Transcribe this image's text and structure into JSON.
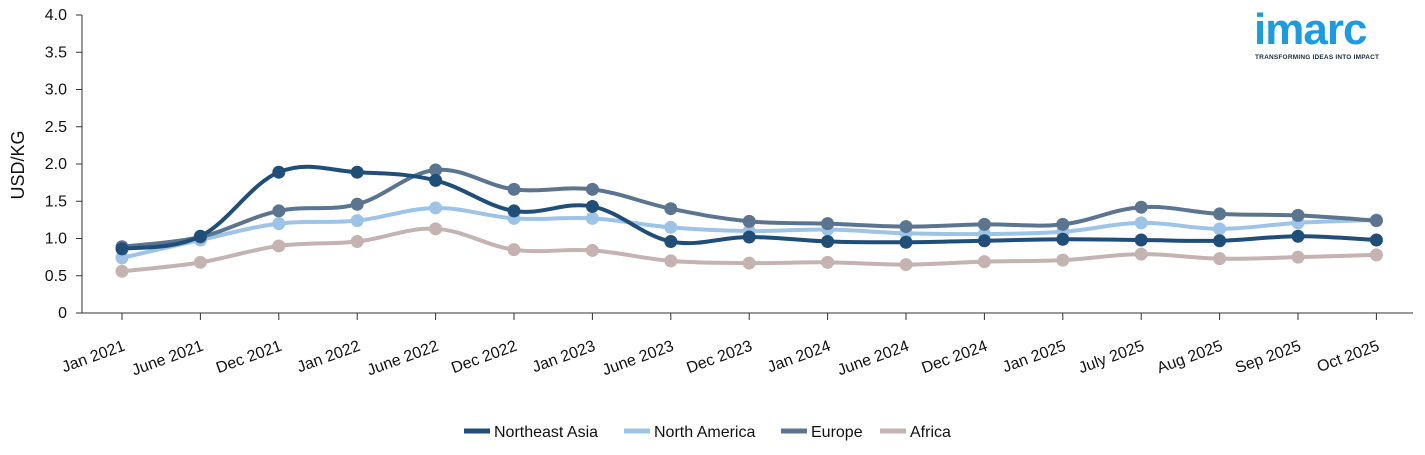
{
  "logo": {
    "wordmark": "imarc",
    "tagline": "TRANSFORMING IDEAS INTO IMPACT"
  },
  "chart_data": {
    "type": "line",
    "title": "",
    "xlabel": "",
    "ylabel": "USD/KG",
    "ylim": [
      0,
      4.0
    ],
    "yticks": [
      "0",
      "0.5",
      "1.0",
      "1.5",
      "2.0",
      "2.5",
      "3.0",
      "3.5",
      "4.0"
    ],
    "grid": false,
    "legend_position": "bottom-center",
    "categories": [
      "Jan 2021",
      "June 2021",
      "Dec 2021",
      "Jan 2022",
      "June 2022",
      "Dec 2022",
      "Jan 2023",
      "June 2023",
      "Dec 2023",
      "Jan 2024",
      "June 2024",
      "Dec 2024",
      "Jan 2025",
      "July 2025",
      "Aug 2025",
      "Sep 2025",
      "Oct 2025"
    ],
    "series": [
      {
        "name": "Northeast Asia",
        "color": "#1f4e79",
        "values": [
          0.86,
          1.03,
          1.89,
          1.89,
          1.78,
          1.37,
          1.43,
          0.96,
          1.02,
          0.96,
          0.95,
          0.97,
          0.99,
          0.98,
          0.97,
          1.03,
          0.98
        ]
      },
      {
        "name": "North America",
        "color": "#9dc3e6",
        "values": [
          0.74,
          0.98,
          1.2,
          1.24,
          1.41,
          1.27,
          1.27,
          1.15,
          1.1,
          1.12,
          1.07,
          1.06,
          1.09,
          1.21,
          1.13,
          1.21,
          1.25
        ]
      },
      {
        "name": "Europe",
        "color": "#5b7590",
        "values": [
          0.89,
          1.02,
          1.37,
          1.46,
          1.92,
          1.66,
          1.66,
          1.4,
          1.23,
          1.2,
          1.16,
          1.19,
          1.19,
          1.42,
          1.33,
          1.31,
          1.24
        ]
      },
      {
        "name": "Africa",
        "color": "#c4b3b0",
        "values": [
          0.56,
          0.68,
          0.9,
          0.96,
          1.13,
          0.85,
          0.84,
          0.7,
          0.67,
          0.68,
          0.65,
          0.69,
          0.71,
          0.79,
          0.73,
          0.75,
          0.78
        ]
      }
    ]
  }
}
